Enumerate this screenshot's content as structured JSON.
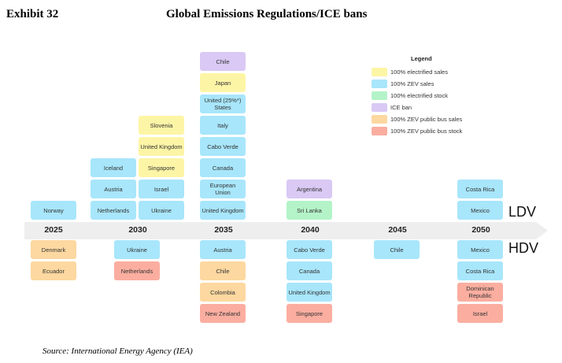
{
  "header": {
    "exhibit": "Exhibit 32",
    "title": "Global Emissions Regulations/ICE bans"
  },
  "source": "Source: International Energy Agency (IEA)",
  "colors": {
    "electrified_sales": "#fdf5a6",
    "zev_sales": "#a8e6fb",
    "electrified_stock": "#b4f3c8",
    "ice_ban": "#d9c9f4",
    "zev_bus_sales": "#fdd8a0",
    "zev_bus_stock": "#fbaea0"
  },
  "legend": {
    "title": "Legend",
    "items": [
      {
        "key": "electrified_sales",
        "label": "100% electrified sales"
      },
      {
        "key": "zev_sales",
        "label": "100% ZEV sales"
      },
      {
        "key": "electrified_stock",
        "label": "100% electrified stock"
      },
      {
        "key": "ice_ban",
        "label": "ICE ban"
      },
      {
        "key": "zev_bus_sales",
        "label": "100% ZEV public bus sales"
      },
      {
        "key": "zev_bus_stock",
        "label": "100% ZEV public bus stock"
      }
    ]
  },
  "labels": {
    "ldv": "LDV",
    "hdv": "HDV"
  },
  "chart_data": {
    "type": "table",
    "title": "Global Emissions Regulations/ICE bans",
    "years": [
      "2025",
      "2030",
      "2035",
      "2040",
      "2045",
      "2050"
    ],
    "ldv_stacks": [
      {
        "year": "2025",
        "items": [
          {
            "c": "Norway",
            "k": "zev_sales"
          }
        ]
      },
      {
        "year": "2030",
        "items": [
          {
            "c": "Netherlands",
            "k": "zev_sales"
          },
          {
            "c": "Austria",
            "k": "zev_sales"
          },
          {
            "c": "Iceland",
            "k": "zev_sales"
          }
        ]
      },
      {
        "year": "2030",
        "items": [
          {
            "c": "Ukraine",
            "k": "zev_sales"
          },
          {
            "c": "Israel",
            "k": "zev_sales"
          },
          {
            "c": "Singapore",
            "k": "electrified_sales"
          },
          {
            "c": "United Kingdom",
            "k": "electrified_sales"
          },
          {
            "c": "Slovenia",
            "k": "electrified_sales"
          }
        ]
      },
      {
        "year": "2035",
        "items": [
          {
            "c": "United Kingdom",
            "k": "zev_sales"
          },
          {
            "c": "European Union",
            "k": "zev_sales"
          },
          {
            "c": "Canada",
            "k": "zev_sales"
          },
          {
            "c": "Cabo Verde",
            "k": "zev_sales"
          },
          {
            "c": "Italy",
            "k": "zev_sales"
          },
          {
            "c": "United (25%*) States",
            "k": "zev_sales"
          },
          {
            "c": "Japan",
            "k": "electrified_sales"
          },
          {
            "c": "Chile",
            "k": "ice_ban"
          }
        ]
      },
      {
        "year": "2040",
        "items": [
          {
            "c": "Sri Lanka",
            "k": "electrified_stock"
          },
          {
            "c": "Argentina",
            "k": "ice_ban"
          }
        ]
      },
      {
        "year": "2045",
        "items": []
      },
      {
        "year": "2050",
        "items": [
          {
            "c": "Mexico",
            "k": "zev_sales"
          },
          {
            "c": "Costa Rica",
            "k": "zev_sales"
          }
        ]
      }
    ],
    "hdv_stacks": [
      {
        "year": "2025",
        "items": [
          {
            "c": "Denmark",
            "k": "zev_bus_sales"
          },
          {
            "c": "Ecuador",
            "k": "zev_bus_sales"
          }
        ]
      },
      {
        "year": "2030",
        "items": [
          {
            "c": "Ukraine",
            "k": "zev_sales"
          },
          {
            "c": "Netherlands",
            "k": "zev_bus_stock"
          }
        ]
      },
      {
        "year": "2035",
        "items": [
          {
            "c": "Austria",
            "k": "zev_sales"
          },
          {
            "c": "Chile",
            "k": "zev_bus_sales"
          },
          {
            "c": "Colombia",
            "k": "zev_bus_sales"
          },
          {
            "c": "New Zealand",
            "k": "zev_bus_stock"
          }
        ]
      },
      {
        "year": "2040",
        "items": [
          {
            "c": "Cabo Verde",
            "k": "zev_sales"
          },
          {
            "c": "Canada",
            "k": "zev_sales"
          },
          {
            "c": "United Kingdom",
            "k": "zev_sales"
          },
          {
            "c": "Singapore",
            "k": "zev_bus_stock"
          }
        ]
      },
      {
        "year": "2045",
        "items": [
          {
            "c": "Chile",
            "k": "zev_sales"
          }
        ]
      },
      {
        "year": "2050",
        "items": [
          {
            "c": "Mexico",
            "k": "zev_sales"
          },
          {
            "c": "Costa Rica",
            "k": "zev_sales"
          },
          {
            "c": "Dominican Republic",
            "k": "zev_bus_stock"
          },
          {
            "c": "Israel",
            "k": "zev_bus_stock"
          }
        ]
      }
    ]
  }
}
